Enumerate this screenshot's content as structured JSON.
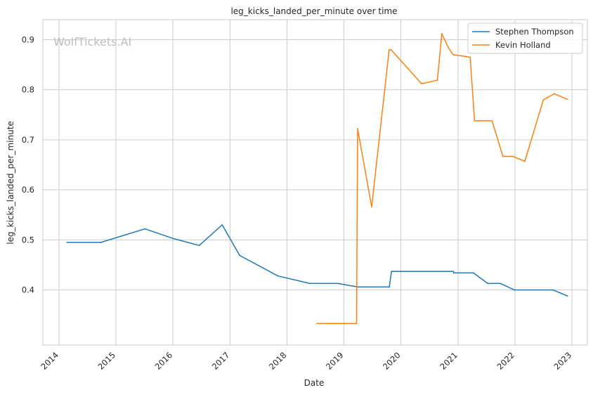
{
  "watermark": "WolfTickets.AI",
  "chart_data": {
    "type": "line",
    "title": "leg_kicks_landed_per_minute over time",
    "xlabel": "Date",
    "ylabel": "leg_kicks_landed_per_minute",
    "xlim": [
      "2013-09-20",
      "2023-04-10"
    ],
    "ylim": [
      0.29,
      0.94
    ],
    "x_ticks": [
      "2014-01-01",
      "2015-01-01",
      "2016-01-01",
      "2017-01-01",
      "2018-01-01",
      "2019-01-01",
      "2020-01-01",
      "2021-01-01",
      "2022-01-01",
      "2023-01-01"
    ],
    "x_tick_labels": [
      "2014",
      "2015",
      "2016",
      "2017",
      "2018",
      "2019",
      "2020",
      "2021",
      "2022",
      "2023"
    ],
    "y_ticks": [
      0.4,
      0.5,
      0.6,
      0.7,
      0.8,
      0.9
    ],
    "y_tick_labels": [
      "0.4",
      "0.5",
      "0.6",
      "0.7",
      "0.8",
      "0.9"
    ],
    "grid": true,
    "legend_position": "top-right",
    "colors": {
      "Stephen Thompson": "#1f77b4",
      "Kevin Holland": "#ff7f0e"
    },
    "series": [
      {
        "name": "Stephen Thompson",
        "color": "#1f77b4",
        "points": [
          [
            "2014-02-22",
            0.495
          ],
          [
            "2014-09-26",
            0.495
          ],
          [
            "2015-07-06",
            0.522
          ],
          [
            "2016-01-01",
            0.503
          ],
          [
            "2016-06-18",
            0.489
          ],
          [
            "2016-11-12",
            0.53
          ],
          [
            "2017-03-04",
            0.469
          ],
          [
            "2017-11-04",
            0.428
          ],
          [
            "2018-05-27",
            0.413
          ],
          [
            "2018-11-24",
            0.413
          ],
          [
            "2019-03-30",
            0.406
          ],
          [
            "2019-10-19",
            0.406
          ],
          [
            "2019-11-02",
            0.437
          ],
          [
            "2020-12-01",
            0.437
          ],
          [
            "2020-12-05",
            0.434
          ],
          [
            "2021-04-10",
            0.434
          ],
          [
            "2021-07-10",
            0.413
          ],
          [
            "2021-09-30",
            0.413
          ],
          [
            "2021-12-28",
            0.4
          ],
          [
            "2022-09-01",
            0.4
          ],
          [
            "2022-12-03",
            0.388
          ]
        ]
      },
      {
        "name": "Kevin Holland",
        "color": "#ff7f0e",
        "points": [
          [
            "2018-07-14",
            0.333
          ],
          [
            "2019-03-23",
            0.333
          ],
          [
            "2019-03-30",
            0.722
          ],
          [
            "2019-06-28",
            0.566
          ],
          [
            "2019-10-18",
            0.88
          ],
          [
            "2019-10-30",
            0.88
          ],
          [
            "2020-05-13",
            0.812
          ],
          [
            "2020-08-22",
            0.819
          ],
          [
            "2020-09-19",
            0.912
          ],
          [
            "2020-10-31",
            0.884
          ],
          [
            "2020-12-01",
            0.87
          ],
          [
            "2021-03-20",
            0.865
          ],
          [
            "2021-04-17",
            0.738
          ],
          [
            "2021-08-07",
            0.738
          ],
          [
            "2021-10-16",
            0.667
          ],
          [
            "2021-12-18",
            0.667
          ],
          [
            "2022-03-05",
            0.657
          ],
          [
            "2022-07-02",
            0.78
          ],
          [
            "2022-09-10",
            0.792
          ],
          [
            "2022-12-03",
            0.781
          ]
        ]
      }
    ]
  }
}
